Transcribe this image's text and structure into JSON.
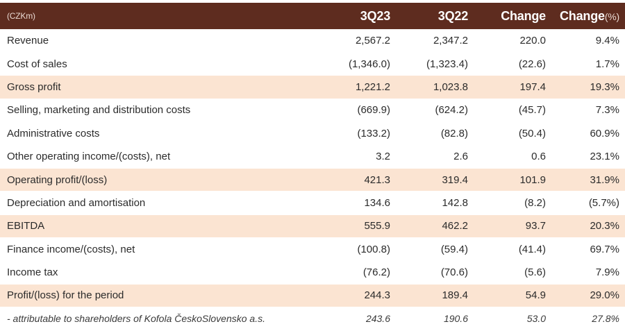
{
  "header": {
    "unit": "(CZKm)",
    "col_3q23": "3Q23",
    "col_3q22": "3Q22",
    "col_change": "Change",
    "col_change_pct": "Change",
    "col_change_pct_unit": "(%)"
  },
  "rows": [
    {
      "label": "Revenue",
      "v3q23": "2,567.2",
      "v3q22": "2,347.2",
      "change": "220.0",
      "pct": "9.4%"
    },
    {
      "label": "Cost of sales",
      "v3q23": "(1,346.0)",
      "v3q22": "(1,323.4)",
      "change": "(22.6)",
      "pct": "1.7%"
    },
    {
      "label": "Gross profit",
      "v3q23": "1,221.2",
      "v3q22": "1,023.8",
      "change": "197.4",
      "pct": "19.3%"
    },
    {
      "label": "Selling, marketing and distribution costs",
      "v3q23": "(669.9)",
      "v3q22": "(624.2)",
      "change": "(45.7)",
      "pct": "7.3%"
    },
    {
      "label": "Administrative costs",
      "v3q23": "(133.2)",
      "v3q22": "(82.8)",
      "change": "(50.4)",
      "pct": "60.9%"
    },
    {
      "label": "Other operating income/(costs), net",
      "v3q23": "3.2",
      "v3q22": "2.6",
      "change": "0.6",
      "pct": "23.1%"
    },
    {
      "label": "Operating profit/(loss)",
      "v3q23": "421.3",
      "v3q22": "319.4",
      "change": "101.9",
      "pct": "31.9%"
    },
    {
      "label": "Depreciation and amortisation",
      "v3q23": "134.6",
      "v3q22": "142.8",
      "change": "(8.2)",
      "pct": "(5.7%)"
    },
    {
      "label": "EBITDA",
      "v3q23": "555.9",
      "v3q22": "462.2",
      "change": "93.7",
      "pct": "20.3%"
    },
    {
      "label": "Finance income/(costs), net",
      "v3q23": "(100.8)",
      "v3q22": "(59.4)",
      "change": "(41.4)",
      "pct": "69.7%"
    },
    {
      "label": "Income tax",
      "v3q23": "(76.2)",
      "v3q22": "(70.6)",
      "change": "(5.6)",
      "pct": "7.9%"
    },
    {
      "label": "Profit/(loss) for the period",
      "v3q23": "244.3",
      "v3q22": "189.4",
      "change": "54.9",
      "pct": "29.0%"
    },
    {
      "label": "- attributable to shareholders of Kofola ČeskoSlovensko a.s.",
      "v3q23": "243.6",
      "v3q22": "190.6",
      "change": "53.0",
      "pct": "27.8%"
    }
  ],
  "colors": {
    "header_bg": "#5e2c1f",
    "highlight_bg": "#fbe4d2"
  }
}
